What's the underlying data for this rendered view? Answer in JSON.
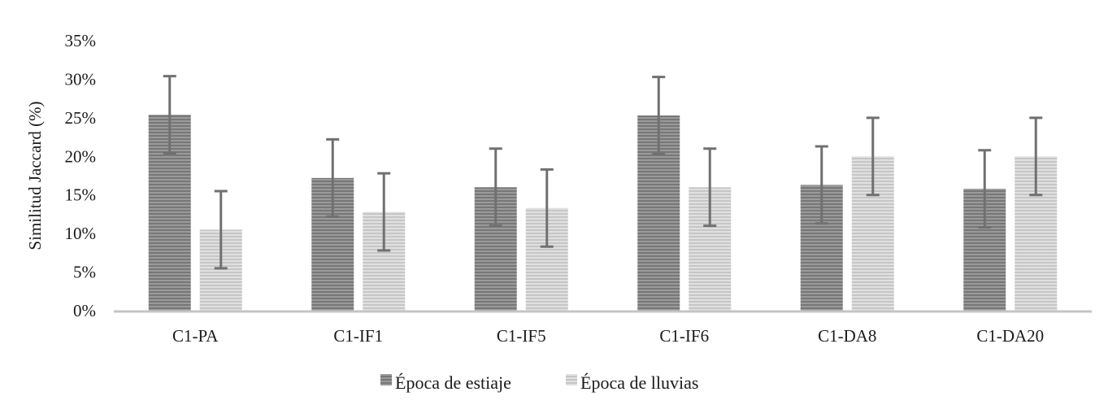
{
  "chart_data": {
    "type": "bar",
    "title": "",
    "xlabel": "",
    "ylabel": "Similitud Jaccard (%)",
    "ylim": [
      0,
      35
    ],
    "yticks": [
      0,
      5,
      10,
      15,
      20,
      25,
      30,
      35
    ],
    "ytick_labels": [
      "0%",
      "5%",
      "10%",
      "15%",
      "20%",
      "25%",
      "30%",
      "35%"
    ],
    "categories": [
      "C1-PA",
      "C1-IF1",
      "C1-IF5",
      "C1-IF6",
      "C1-DA8",
      "C1-DA20"
    ],
    "series": [
      {
        "name": "Época de estiaje",
        "values": [
          25.4,
          17.2,
          16.0,
          25.3,
          16.3,
          15.8
        ],
        "error": [
          5.0,
          5.0,
          5.0,
          5.0,
          5.0,
          5.0
        ],
        "color": "#8c8c8c"
      },
      {
        "name": "Época de lluvias",
        "values": [
          10.5,
          12.8,
          13.3,
          16.0,
          20.0,
          20.0
        ],
        "error": [
          5.0,
          5.0,
          5.0,
          5.0,
          5.0,
          5.0
        ],
        "color": "#d2d2d2"
      }
    ],
    "grid": false,
    "legend_position": "bottom",
    "error_bar_color": "#707070"
  }
}
